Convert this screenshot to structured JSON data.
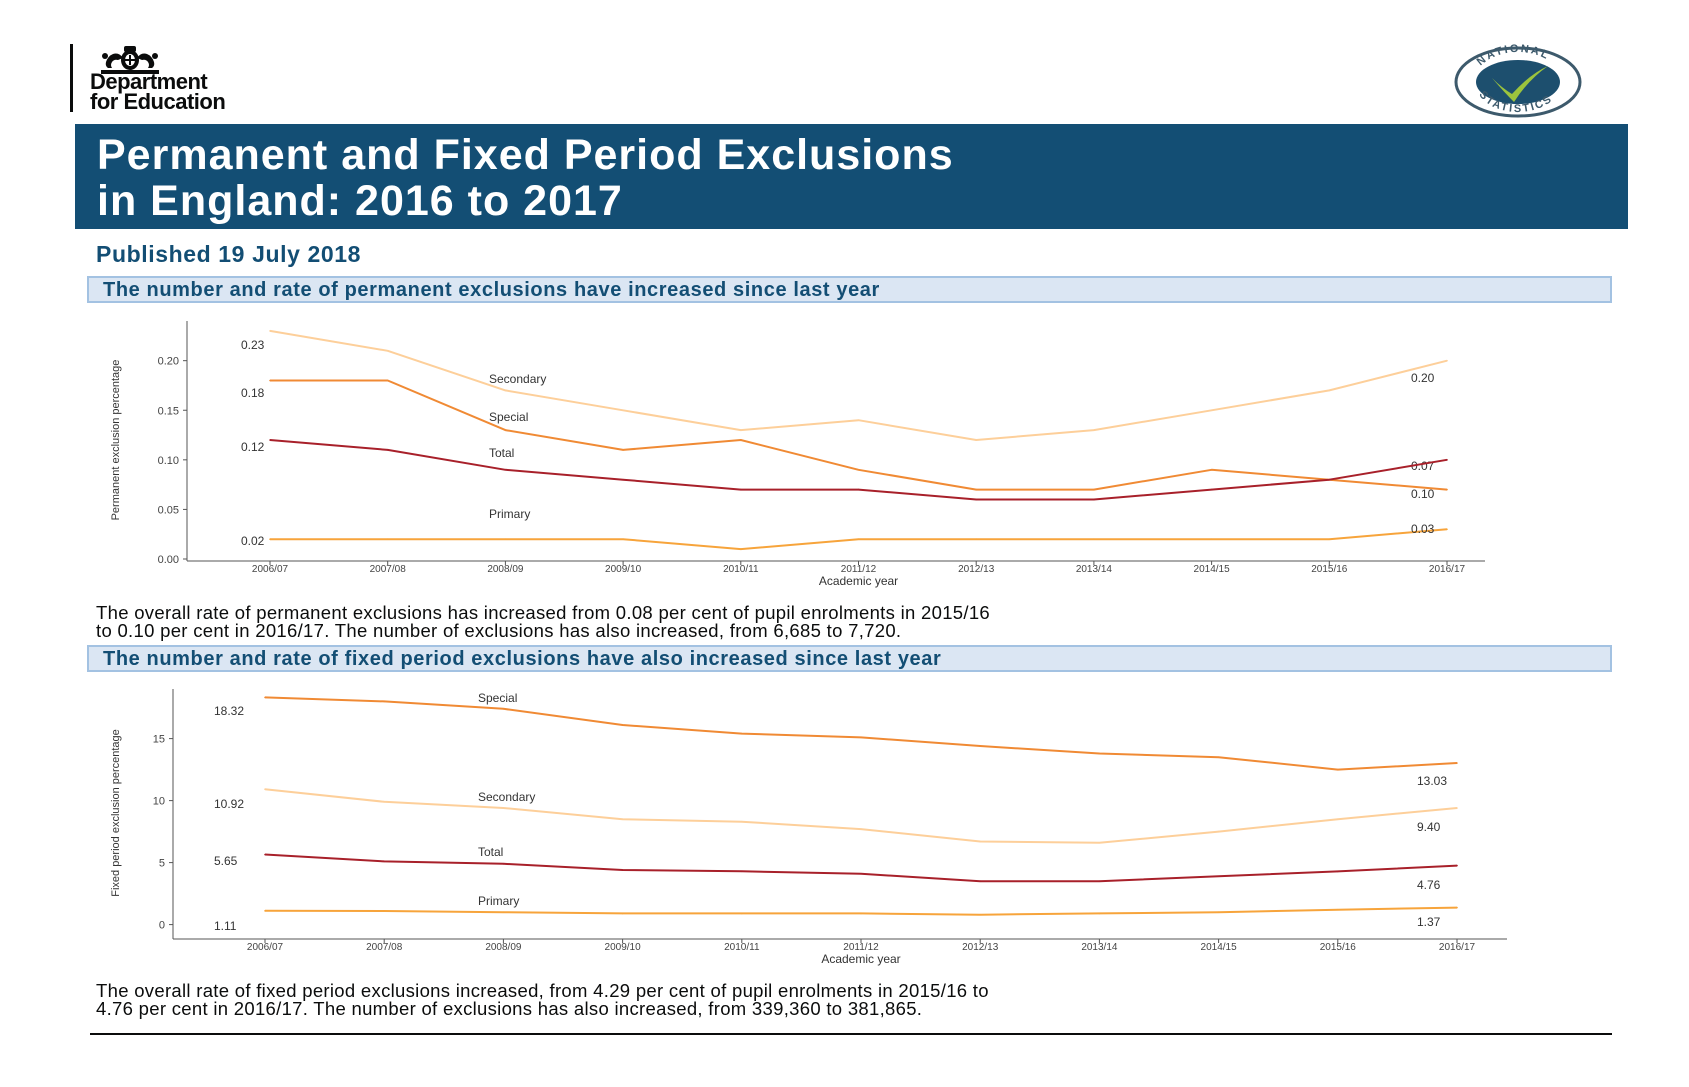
{
  "header": {
    "department_line1": "Department",
    "department_line2": "for Education",
    "badge_text": "NATIONAL STATISTICS",
    "title_line1": "Permanent and Fixed Period Exclusions",
    "title_line2": "in England: 2016 to 2017",
    "published": "Published 19 July 2018"
  },
  "sections": [
    {
      "heading": "The number and rate of permanent exclusions have increased since last year",
      "description_line1": "The overall rate of permanent exclusions has increased from 0.08 per cent of pupil enrolments in 2015/16",
      "description_line2": "to 0.10 per cent in 2016/17. The number of exclusions has also increased, from 6,685 to 7,720."
    },
    {
      "heading": "The number and rate of fixed period exclusions have also increased since last year",
      "description_line1": "The overall rate of fixed period exclusions increased, from 4.29 per cent of pupil enrolments in 2015/16 to",
      "description_line2": "4.76 per cent in 2016/17. The number of exclusions has also increased, from 339,360 to 381,865."
    }
  ],
  "chart_data": [
    {
      "type": "line",
      "xlabel": "Academic year",
      "ylabel": "Permanent exclusion percentage",
      "categories": [
        "2006/07",
        "2007/08",
        "2008/09",
        "2009/10",
        "2010/11",
        "2011/12",
        "2012/13",
        "2013/14",
        "2014/15",
        "2015/16",
        "2016/17"
      ],
      "ylim": [
        0,
        0.24
      ],
      "yticks": [
        "0.00",
        "0.05",
        "0.10",
        "0.15",
        "0.20"
      ],
      "series": [
        {
          "name": "Secondary",
          "color": "#fdcf9a",
          "values": [
            0.23,
            0.21,
            0.17,
            0.15,
            0.13,
            0.14,
            0.12,
            0.13,
            0.15,
            0.17,
            0.2
          ],
          "start_label": "0.23",
          "end_label": "0.20"
        },
        {
          "name": "Special",
          "color": "#f08a34",
          "values": [
            0.18,
            0.18,
            0.13,
            0.11,
            0.12,
            0.09,
            0.07,
            0.07,
            0.09,
            0.08,
            0.07
          ],
          "start_label": "0.18",
          "end_label": "0.07"
        },
        {
          "name": "Total",
          "color": "#a8202a",
          "values": [
            0.12,
            0.11,
            0.09,
            0.08,
            0.07,
            0.07,
            0.06,
            0.06,
            0.07,
            0.08,
            0.1
          ],
          "start_label": "0.12",
          "end_label": "0.10"
        },
        {
          "name": "Primary",
          "color": "#f7a43b",
          "values": [
            0.02,
            0.02,
            0.02,
            0.02,
            0.01,
            0.02,
            0.02,
            0.02,
            0.02,
            0.02,
            0.03
          ],
          "start_label": "0.02",
          "end_label": "0.03"
        }
      ]
    },
    {
      "type": "line",
      "xlabel": "Academic year",
      "ylabel": "Fixed period exclusion percentage",
      "categories": [
        "2006/07",
        "2007/08",
        "2008/09",
        "2009/10",
        "2010/11",
        "2011/12",
        "2012/13",
        "2013/14",
        "2014/15",
        "2015/16",
        "2016/17"
      ],
      "ylim": [
        -1,
        19
      ],
      "yticks": [
        "0",
        "5",
        "10",
        "15"
      ],
      "series": [
        {
          "name": "Special",
          "color": "#f08a34",
          "values": [
            18.32,
            18.0,
            17.4,
            16.1,
            15.4,
            15.1,
            14.4,
            13.8,
            13.5,
            12.5,
            13.03
          ],
          "start_label": "18.32",
          "end_label": "13.03"
        },
        {
          "name": "Secondary",
          "color": "#fdcf9a",
          "values": [
            10.92,
            9.9,
            9.4,
            8.5,
            8.3,
            7.7,
            6.7,
            6.6,
            7.5,
            8.5,
            9.4
          ],
          "start_label": "10.92",
          "end_label": "9.40"
        },
        {
          "name": "Total",
          "color": "#a8202a",
          "values": [
            5.65,
            5.1,
            4.9,
            4.4,
            4.3,
            4.1,
            3.5,
            3.5,
            3.9,
            4.29,
            4.76
          ],
          "start_label": "5.65",
          "end_label": "4.76"
        },
        {
          "name": "Primary",
          "color": "#f7a43b",
          "values": [
            1.11,
            1.1,
            1.0,
            0.9,
            0.9,
            0.9,
            0.8,
            0.9,
            1.0,
            1.2,
            1.37
          ],
          "start_label": "1.11",
          "end_label": "1.37"
        }
      ]
    }
  ]
}
